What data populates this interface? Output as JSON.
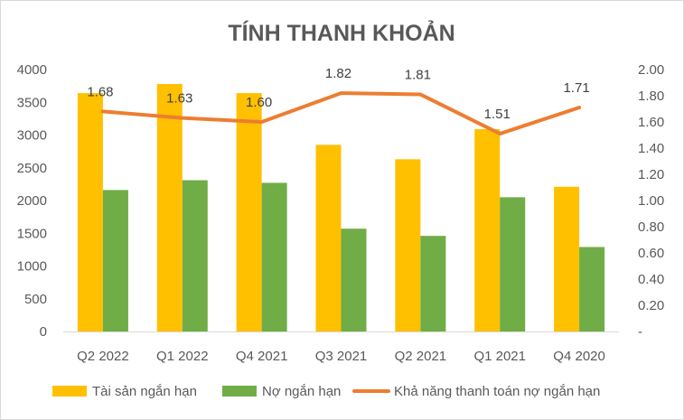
{
  "chart_data": {
    "type": "bar",
    "title": "TÍNH THANH KHOẢN",
    "categories": [
      "Q2 2022",
      "Q1 2022",
      "Q4 2021",
      "Q3 2021",
      "Q2 2021",
      "Q1 2021",
      "Q4 2020"
    ],
    "series": [
      {
        "name": "Tài sản ngắn hạn",
        "type": "bar",
        "axis": "left",
        "color": "#FFC000",
        "values": [
          3640,
          3780,
          3640,
          2850,
          2630,
          3090,
          2210
        ]
      },
      {
        "name": "Nợ ngắn hạn",
        "type": "bar",
        "axis": "left",
        "color": "#70AD47",
        "values": [
          2160,
          2310,
          2270,
          1570,
          1460,
          2050,
          1290
        ]
      },
      {
        "name": "Khả năng thanh toán nợ ngắn hạn",
        "type": "line",
        "axis": "right",
        "color": "#ED7D31",
        "values": [
          1.68,
          1.63,
          1.6,
          1.82,
          1.81,
          1.51,
          1.71
        ],
        "labels": [
          "1.68",
          "1.63",
          "1.60",
          "1.82",
          "1.81",
          "1.51",
          "1.71"
        ]
      }
    ],
    "y_left": {
      "min": 0,
      "max": 4000,
      "step": 500,
      "ticks": [
        "0",
        "500",
        "1000",
        "1500",
        "2000",
        "2500",
        "3000",
        "3500",
        "4000"
      ]
    },
    "y_right": {
      "min": 0,
      "max": 2.0,
      "step": 0.2,
      "ticks": [
        "-",
        "0.20",
        "0.40",
        "0.60",
        "0.80",
        "1.00",
        "1.20",
        "1.40",
        "1.60",
        "1.80",
        "2.00"
      ]
    },
    "grid": false,
    "legend": "bottom"
  }
}
